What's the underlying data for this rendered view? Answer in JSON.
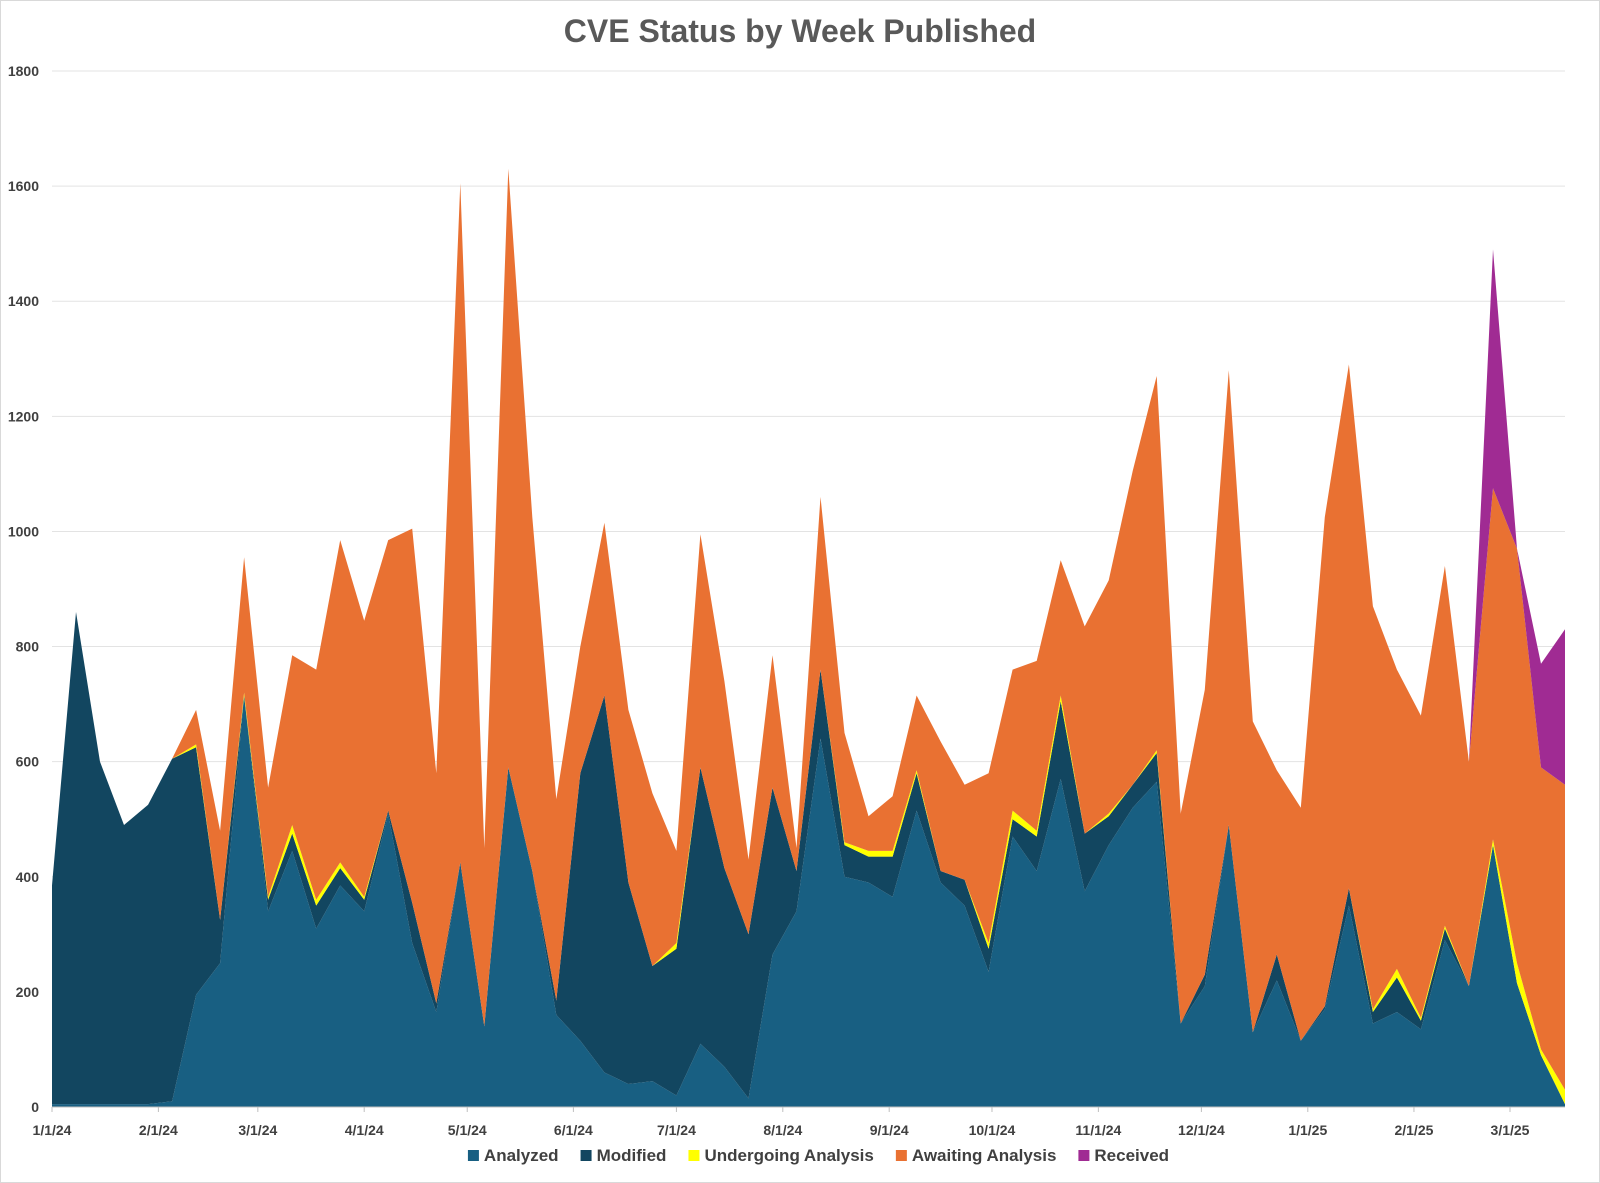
{
  "chart_data": {
    "type": "area",
    "stacked": true,
    "title": "CVE Status by Week Published",
    "xlabel": "",
    "ylabel": "",
    "ylim": [
      0,
      1800
    ],
    "yticks": [
      0,
      200,
      400,
      600,
      800,
      1000,
      1200,
      1400,
      1600,
      1800
    ],
    "grid": true,
    "legend_position": "bottom",
    "x_tick_labels": [
      {
        "label": "1/1/24",
        "week": 0
      },
      {
        "label": "2/1/24",
        "week": 4.43
      },
      {
        "label": "3/1/24",
        "week": 8.57
      },
      {
        "label": "4/1/24",
        "week": 13
      },
      {
        "label": "5/1/24",
        "week": 17.29
      },
      {
        "label": "6/1/24",
        "week": 21.71
      },
      {
        "label": "7/1/24",
        "week": 26
      },
      {
        "label": "8/1/24",
        "week": 30.43
      },
      {
        "label": "9/1/24",
        "week": 34.86
      },
      {
        "label": "10/1/24",
        "week": 39.14
      },
      {
        "label": "11/1/24",
        "week": 43.57
      },
      {
        "label": "12/1/24",
        "week": 47.86
      },
      {
        "label": "1/1/25",
        "week": 52.29
      },
      {
        "label": "2/1/25",
        "week": 56.71
      },
      {
        "label": "3/1/25",
        "week": 60.71
      }
    ],
    "x_range_weeks": [
      0,
      63
    ],
    "series": [
      {
        "name": "Analyzed",
        "color": "#185f82",
        "values": [
          5,
          5,
          5,
          5,
          5,
          10,
          195,
          250,
          715,
          340,
          445,
          310,
          385,
          340,
          510,
          285,
          165,
          425,
          140,
          590,
          410,
          160,
          115,
          60,
          40,
          45,
          20,
          110,
          70,
          15,
          265,
          340,
          640,
          400,
          390,
          365,
          515,
          390,
          350,
          235,
          470,
          410,
          570,
          375,
          455,
          520,
          565,
          145,
          210,
          490,
          130,
          220,
          115,
          170,
          350,
          145,
          165,
          135,
          290,
          210,
          455,
          215,
          90,
          5
        ]
      },
      {
        "name": "Modified",
        "color": "#124660",
        "values": [
          380,
          855,
          595,
          485,
          520,
          595,
          430,
          75,
          0,
          20,
          30,
          40,
          30,
          20,
          5,
          70,
          15,
          0,
          0,
          0,
          0,
          25,
          465,
          655,
          350,
          200,
          255,
          480,
          345,
          285,
          290,
          70,
          120,
          55,
          45,
          70,
          65,
          20,
          45,
          40,
          30,
          60,
          135,
          100,
          50,
          40,
          50,
          0,
          20,
          0,
          0,
          45,
          0,
          5,
          30,
          20,
          60,
          15,
          20,
          0,
          0,
          0,
          0,
          0
        ]
      },
      {
        "name": "Undergoing Analysis",
        "color": "#ffff00",
        "values": [
          0,
          0,
          0,
          0,
          0,
          0,
          5,
          0,
          5,
          5,
          15,
          10,
          10,
          5,
          0,
          0,
          0,
          0,
          0,
          0,
          0,
          0,
          0,
          0,
          0,
          0,
          10,
          0,
          0,
          0,
          0,
          0,
          0,
          5,
          10,
          10,
          5,
          0,
          0,
          10,
          15,
          10,
          10,
          0,
          5,
          0,
          5,
          0,
          0,
          0,
          0,
          0,
          0,
          0,
          0,
          5,
          15,
          5,
          5,
          0,
          10,
          35,
          10,
          25
        ]
      },
      {
        "name": "Awaiting Analysis",
        "color": "#e97132",
        "values": [
          0,
          0,
          0,
          0,
          0,
          0,
          60,
          155,
          235,
          190,
          295,
          400,
          560,
          480,
          470,
          650,
          400,
          1180,
          310,
          1040,
          615,
          350,
          220,
          300,
          300,
          300,
          160,
          405,
          325,
          130,
          230,
          40,
          300,
          190,
          60,
          95,
          130,
          225,
          165,
          295,
          245,
          295,
          235,
          360,
          405,
          545,
          650,
          365,
          495,
          790,
          540,
          320,
          405,
          850,
          910,
          700,
          520,
          525,
          625,
          390,
          610,
          720,
          490,
          530
        ]
      },
      {
        "name": "Received",
        "color": "#a02b93",
        "values": [
          0,
          0,
          0,
          0,
          0,
          0,
          0,
          0,
          0,
          0,
          0,
          0,
          0,
          0,
          0,
          0,
          0,
          0,
          0,
          0,
          0,
          0,
          0,
          0,
          0,
          0,
          0,
          0,
          0,
          0,
          0,
          0,
          0,
          0,
          0,
          0,
          0,
          0,
          0,
          0,
          0,
          0,
          0,
          0,
          0,
          0,
          0,
          0,
          0,
          0,
          0,
          0,
          0,
          0,
          0,
          0,
          0,
          0,
          0,
          0,
          415,
          0,
          180,
          270
        ]
      }
    ]
  }
}
